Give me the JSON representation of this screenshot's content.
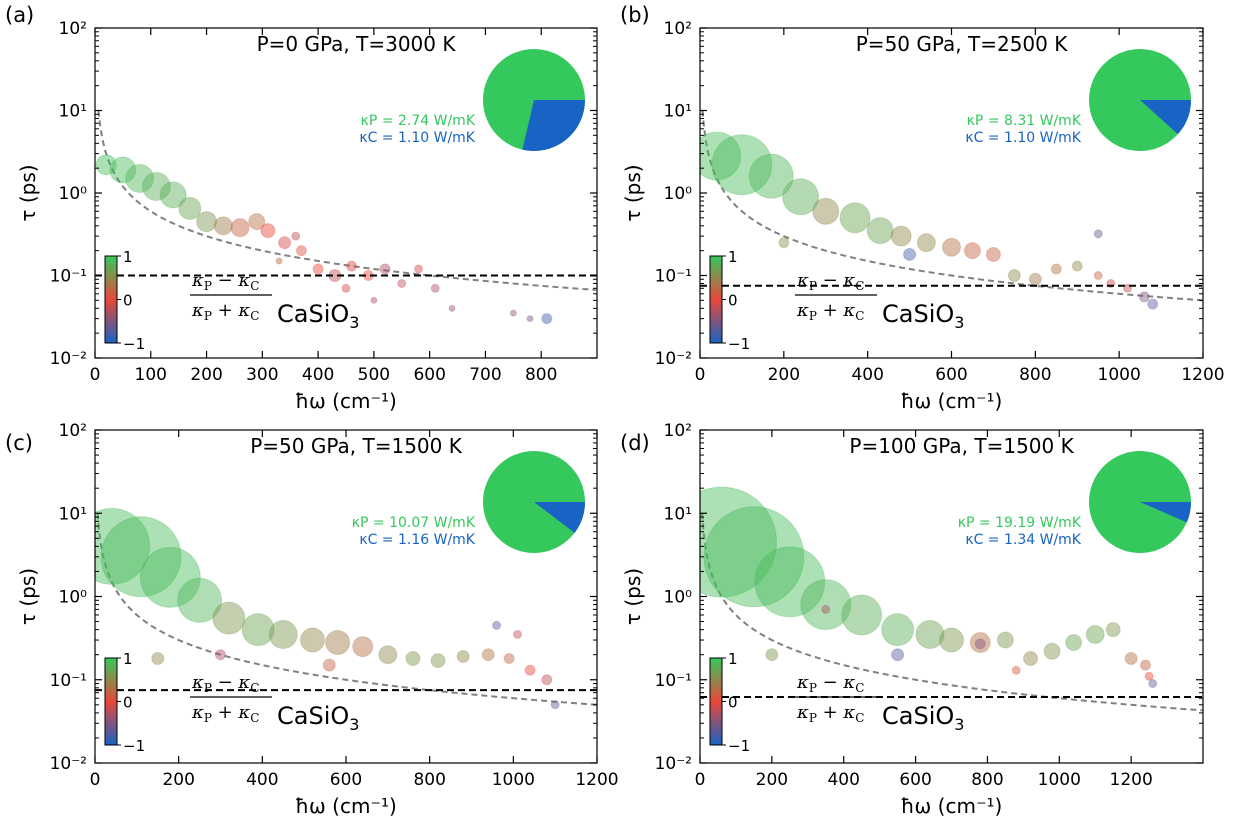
{
  "chart_data": [
    {
      "panel_label": "(a)",
      "type": "scatter",
      "condition": "P=0 GPa, T=3000 K",
      "xlabel": "ħω (cm⁻¹)",
      "ylabel": "τ (ps)",
      "xlim": [
        0,
        900
      ],
      "ylim": [
        0.01,
        100
      ],
      "yscale": "log",
      "xticks": [
        0,
        100,
        200,
        300,
        400,
        500,
        600,
        700,
        800
      ],
      "yticks": [
        "10⁻²",
        "10⁻¹",
        "10⁰",
        "10¹",
        "10²"
      ],
      "kappa_P_text": "κP = 2.74 W/mK",
      "kappa_C_text": "κC = 1.10 W/mK",
      "kappa_P": 2.74,
      "kappa_C": 1.1,
      "reference_line_tau": 0.1,
      "material": "CaSiO3",
      "cbar_ticks": [
        "1",
        "0",
        "−1"
      ],
      "points": [
        [
          20,
          2.2,
          10,
          0.9
        ],
        [
          50,
          1.9,
          13,
          0.9
        ],
        [
          80,
          1.5,
          14,
          0.85
        ],
        [
          110,
          1.2,
          14,
          0.8
        ],
        [
          140,
          0.95,
          13,
          0.8
        ],
        [
          170,
          0.65,
          11,
          0.7
        ],
        [
          200,
          0.45,
          10,
          0.6
        ],
        [
          230,
          0.4,
          9,
          0.4
        ],
        [
          260,
          0.38,
          9,
          0.2
        ],
        [
          290,
          0.45,
          8,
          0.3
        ],
        [
          310,
          0.35,
          7,
          0.0
        ],
        [
          340,
          0.25,
          6,
          -0.1
        ],
        [
          370,
          0.2,
          5,
          0.1
        ],
        [
          400,
          0.12,
          5,
          0.0
        ],
        [
          430,
          0.1,
          6,
          -0.2
        ],
        [
          460,
          0.13,
          5,
          -0.1
        ],
        [
          490,
          0.1,
          5,
          0.0
        ],
        [
          520,
          0.12,
          5,
          -0.3
        ],
        [
          550,
          0.08,
          4,
          -0.2
        ],
        [
          580,
          0.12,
          4,
          -0.1
        ],
        [
          610,
          0.07,
          4,
          -0.3
        ],
        [
          640,
          0.04,
          3,
          -0.4
        ],
        [
          360,
          0.3,
          4,
          -0.2
        ],
        [
          450,
          0.07,
          4,
          -0.1
        ],
        [
          500,
          0.05,
          3,
          -0.3
        ],
        [
          330,
          0.15,
          3,
          0.2
        ],
        [
          750,
          0.035,
          3,
          -0.4
        ],
        [
          780,
          0.03,
          3,
          -0.5
        ],
        [
          810,
          0.03,
          5,
          -0.8
        ]
      ]
    },
    {
      "panel_label": "(b)",
      "type": "scatter",
      "condition": "P=50 GPa, T=2500 K",
      "xlabel": "ħω (cm⁻¹)",
      "ylabel": "τ (ps)",
      "xlim": [
        0,
        1200
      ],
      "ylim": [
        0.01,
        100
      ],
      "yscale": "log",
      "xticks": [
        0,
        200,
        400,
        600,
        800,
        1000,
        1200
      ],
      "yticks": [
        "10⁻²",
        "10⁻¹",
        "10⁰",
        "10¹",
        "10²"
      ],
      "kappa_P_text": "κP = 8.31 W/mK",
      "kappa_C_text": "κC = 1.10 W/mK",
      "kappa_P": 8.31,
      "kappa_C": 1.1,
      "reference_line_tau": 0.075,
      "material": "CaSiO3",
      "cbar_ticks": [
        "1",
        "0",
        "−1"
      ],
      "points": [
        [
          40,
          2.8,
          24,
          0.9
        ],
        [
          100,
          2.2,
          30,
          0.9
        ],
        [
          170,
          1.6,
          22,
          0.85
        ],
        [
          240,
          0.9,
          18,
          0.8
        ],
        [
          300,
          0.6,
          13,
          0.5
        ],
        [
          370,
          0.5,
          15,
          0.7
        ],
        [
          430,
          0.35,
          13,
          0.7
        ],
        [
          480,
          0.3,
          10,
          0.5
        ],
        [
          540,
          0.25,
          9,
          0.5
        ],
        [
          600,
          0.22,
          9,
          0.3
        ],
        [
          650,
          0.2,
          8,
          0.2
        ],
        [
          700,
          0.18,
          7,
          0.2
        ],
        [
          750,
          0.1,
          6,
          0.5
        ],
        [
          800,
          0.09,
          6,
          0.4
        ],
        [
          850,
          0.12,
          5,
          0.3
        ],
        [
          900,
          0.13,
          5,
          0.5
        ],
        [
          950,
          0.1,
          4,
          0.2
        ],
        [
          980,
          0.08,
          4,
          -0.1
        ],
        [
          1020,
          0.07,
          4,
          -0.2
        ],
        [
          1060,
          0.055,
          5,
          -0.5
        ],
        [
          200,
          0.25,
          5,
          0.6
        ],
        [
          950,
          0.32,
          4,
          -0.6
        ],
        [
          1080,
          0.045,
          5,
          -0.7
        ],
        [
          500,
          0.18,
          6,
          -0.8
        ]
      ]
    },
    {
      "panel_label": "(c)",
      "type": "scatter",
      "condition": "P=50 GPa, T=1500 K",
      "xlabel": "ħω (cm⁻¹)",
      "ylabel": "τ (ps)",
      "xlim": [
        0,
        1200
      ],
      "ylim": [
        0.01,
        100
      ],
      "yscale": "log",
      "xticks": [
        0,
        200,
        400,
        600,
        800,
        1000,
        1200
      ],
      "yticks": [
        "10⁻²",
        "10⁻¹",
        "10⁰",
        "10¹",
        "10²"
      ],
      "kappa_P_text": "κP = 10.07 W/mK",
      "kappa_C_text": "κC = 1.16 W/mK",
      "kappa_P": 10.07,
      "kappa_C": 1.16,
      "reference_line_tau": 0.075,
      "material": "CaSiO3",
      "cbar_ticks": [
        "1",
        "0",
        "−1"
      ],
      "points": [
        [
          40,
          4.0,
          38,
          0.9
        ],
        [
          110,
          3.0,
          40,
          0.9
        ],
        [
          180,
          1.7,
          30,
          0.9
        ],
        [
          250,
          0.9,
          22,
          0.85
        ],
        [
          320,
          0.55,
          16,
          0.6
        ],
        [
          390,
          0.4,
          16,
          0.7
        ],
        [
          450,
          0.35,
          14,
          0.6
        ],
        [
          520,
          0.3,
          12,
          0.5
        ],
        [
          580,
          0.28,
          12,
          0.4
        ],
        [
          640,
          0.25,
          10,
          0.3
        ],
        [
          700,
          0.2,
          9,
          0.5
        ],
        [
          760,
          0.18,
          7,
          0.6
        ],
        [
          820,
          0.17,
          7,
          0.6
        ],
        [
          880,
          0.19,
          6,
          0.5
        ],
        [
          940,
          0.2,
          6,
          0.3
        ],
        [
          990,
          0.18,
          5,
          0.2
        ],
        [
          1040,
          0.13,
          5,
          0.0
        ],
        [
          1080,
          0.1,
          5,
          -0.2
        ],
        [
          1100,
          0.05,
          4,
          -0.6
        ],
        [
          150,
          0.18,
          6,
          0.5
        ],
        [
          300,
          0.2,
          5,
          -0.3
        ],
        [
          960,
          0.45,
          4,
          -0.7
        ],
        [
          1010,
          0.35,
          4,
          -0.2
        ],
        [
          560,
          0.15,
          6,
          0.2
        ]
      ]
    },
    {
      "panel_label": "(d)",
      "type": "scatter",
      "condition": "P=100 GPa, T=1500 K",
      "xlabel": "ħω (cm⁻¹)",
      "ylabel": "τ (ps)",
      "xlim": [
        0,
        1400
      ],
      "ylim": [
        0.01,
        100
      ],
      "yscale": "log",
      "xticks": [
        0,
        200,
        400,
        600,
        800,
        1000,
        1200
      ],
      "yticks": [
        "10⁻²",
        "10⁻¹",
        "10⁰",
        "10¹",
        "10²"
      ],
      "kappa_P_text": "κP = 19.19 W/mK",
      "kappa_C_text": "κC = 1.34 W/mK",
      "kappa_P": 19.19,
      "kappa_C": 1.34,
      "reference_line_tau": 0.062,
      "material": "CaSiO3",
      "cbar_ticks": [
        "1",
        "0",
        "−1"
      ],
      "points": [
        [
          60,
          4.5,
          55,
          0.9
        ],
        [
          150,
          3.0,
          50,
          0.9
        ],
        [
          250,
          1.5,
          35,
          0.9
        ],
        [
          350,
          0.8,
          25,
          0.85
        ],
        [
          450,
          0.6,
          20,
          0.8
        ],
        [
          550,
          0.4,
          16,
          0.8
        ],
        [
          640,
          0.35,
          14,
          0.7
        ],
        [
          700,
          0.3,
          12,
          0.6
        ],
        [
          780,
          0.28,
          10,
          0.3
        ],
        [
          850,
          0.3,
          8,
          0.6
        ],
        [
          920,
          0.18,
          7,
          0.5
        ],
        [
          980,
          0.22,
          8,
          0.6
        ],
        [
          1040,
          0.28,
          8,
          0.7
        ],
        [
          1100,
          0.35,
          9,
          0.7
        ],
        [
          1150,
          0.4,
          7,
          0.6
        ],
        [
          1200,
          0.18,
          6,
          0.3
        ],
        [
          1240,
          0.15,
          5,
          0.2
        ],
        [
          1260,
          0.09,
          4,
          -0.6
        ],
        [
          350,
          0.7,
          4,
          -0.3
        ],
        [
          200,
          0.2,
          6,
          0.6
        ],
        [
          550,
          0.2,
          6,
          -0.7
        ],
        [
          1250,
          0.11,
          4,
          0.0
        ],
        [
          880,
          0.13,
          4,
          0.1
        ],
        [
          780,
          0.27,
          5,
          -0.5
        ]
      ]
    }
  ]
}
